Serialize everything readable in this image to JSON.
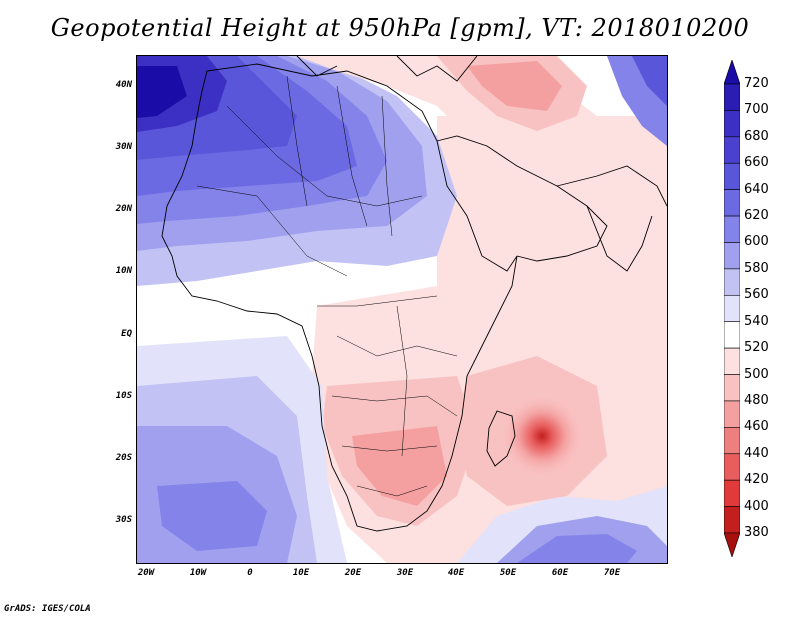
{
  "title": "Geopotential Height at 950hPa [gpm], VT: 2018010200",
  "footer": "GrADS: IGES/COLA",
  "map": {
    "lat_labels": [
      "40N",
      "30N",
      "20N",
      "10N",
      "EQ",
      "10S",
      "20S",
      "30S"
    ],
    "lon_labels": [
      "20W",
      "10W",
      "0",
      "10E",
      "20E",
      "30E",
      "40E",
      "50E",
      "60E",
      "70E"
    ],
    "lat_range": [
      -37,
      45
    ],
    "lon_range": [
      -22,
      80
    ]
  },
  "colorbar": {
    "labels": [
      "720",
      "700",
      "680",
      "660",
      "640",
      "620",
      "600",
      "580",
      "560",
      "540",
      "520",
      "500",
      "480",
      "460",
      "440",
      "420",
      "400",
      "380"
    ],
    "colors": [
      "#1a0ca6",
      "#2b1db3",
      "#3c30c4",
      "#4a42cf",
      "#5a56da",
      "#6c6ae2",
      "#8483ea",
      "#a0a0ef",
      "#c2c3f4",
      "#e2e3fa",
      "#ffffff",
      "#fde0e0",
      "#f9c2c2",
      "#f4a0a0",
      "#ee7f7f",
      "#e85d5d",
      "#e03a3a",
      "#c41f1f",
      "#a81010"
    ]
  }
}
